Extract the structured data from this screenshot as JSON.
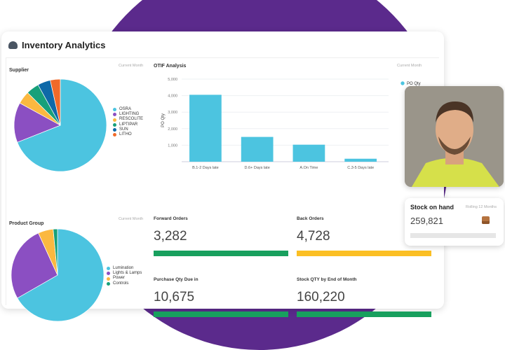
{
  "header": {
    "title": "Inventory Analytics",
    "icon": "gauge-icon"
  },
  "supplier": {
    "title": "Supplier",
    "period": "Current Month"
  },
  "product_group": {
    "title": "Product Group",
    "period": "Current Month"
  },
  "otif": {
    "title": "OTIF Analysis",
    "period": "Current Month"
  },
  "kpis": [
    {
      "label": "Forward Orders",
      "value": "3,282",
      "color": "#18a05e"
    },
    {
      "label": "Back Orders",
      "value": "4,728",
      "color": "#fbbf24"
    },
    {
      "label": "Purchase Qty Due in",
      "value": "10,675",
      "color": "#18a05e"
    },
    {
      "label": "Stock QTY by End of Month",
      "value": "160,220",
      "color": "#18a05e"
    }
  ],
  "stock_on_hand": {
    "title": "Stock on hand",
    "period": "Rolling 12 Months",
    "value": "259,821",
    "icon": "package-box-icon"
  },
  "chart_data": [
    {
      "type": "pie",
      "title": "Supplier",
      "categories": [
        "OSRA",
        "LIGHTING",
        "RESCOLITE",
        "LIPTIPAR",
        "SUN",
        "LITHO"
      ],
      "values": [
        69,
        14,
        4.5,
        4.5,
        4.5,
        3.5
      ],
      "colors": [
        "#4cc4e0",
        "#8b4fc2",
        "#fbb840",
        "#17a07a",
        "#0e69a8",
        "#f06a2a"
      ],
      "legend": "right"
    },
    {
      "type": "pie",
      "title": "Product Group",
      "categories": [
        "Lumination",
        "Lights & Lamps",
        "Power",
        "Controls"
      ],
      "values": [
        66.7,
        26.5,
        5.3,
        1.5
      ],
      "colors": [
        "#4cc4e0",
        "#8b4fc2",
        "#fbb840",
        "#17a07a"
      ],
      "legend": "right"
    },
    {
      "type": "bar",
      "title": "OTIF Analysis",
      "categories": [
        "B.1-2 Days late",
        "D.6+ Days late",
        "A.On Time",
        "C.3-5 Days late"
      ],
      "series": [
        {
          "name": "PO Qty",
          "values": [
            4050,
            1500,
            1030,
            180
          ]
        }
      ],
      "ylabel": "PO Qty",
      "ylim": [
        0,
        5000
      ],
      "yticks": [
        "1,000",
        "2,000",
        "3,000",
        "4,000",
        "5,000"
      ],
      "color": "#4cc4e0",
      "grid": true,
      "legend": "top-right"
    }
  ]
}
